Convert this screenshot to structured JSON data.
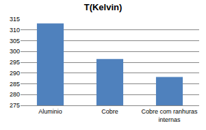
{
  "chart_data": {
    "type": "bar",
    "title": "T(Kelvin)",
    "categories": [
      "Aluminio",
      "Cobre",
      "Cobre com ranhuras internas"
    ],
    "values": [
      313,
      296.5,
      288.2
    ],
    "color": "#4f81bd",
    "ylim": [
      275,
      315
    ],
    "yticks": [
      275,
      280,
      285,
      290,
      295,
      300,
      305,
      310,
      315
    ],
    "grid": true
  }
}
